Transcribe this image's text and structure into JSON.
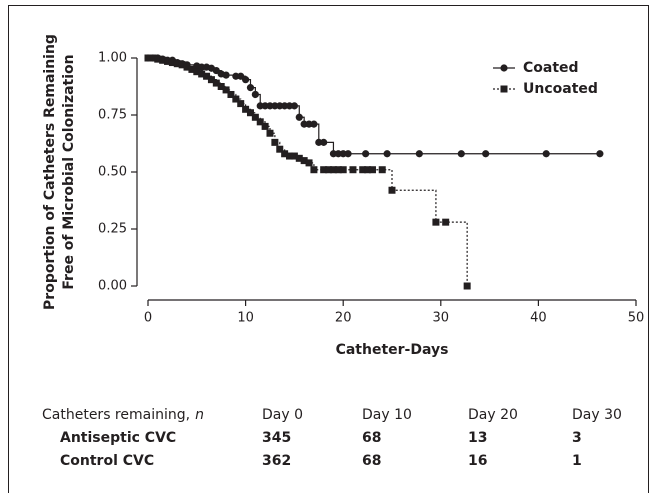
{
  "chart_data": {
    "type": "step",
    "xlabel": "Catheter-Days",
    "ylabel": [
      "Proportion of Catheters Remaining",
      "Free of Microbial Colonization"
    ],
    "xlim": [
      0,
      50
    ],
    "xticks": [
      0,
      10,
      20,
      30,
      40,
      50
    ],
    "ylim": [
      0,
      1
    ],
    "yticks": [
      {
        "value": 0,
        "label": "0.00"
      },
      {
        "value": 0.25,
        "label": "0.25"
      },
      {
        "value": 0.5,
        "label": "0.50"
      },
      {
        "value": 0.75,
        "label": "0.75"
      },
      {
        "value": 1,
        "label": "1.00"
      }
    ],
    "legend": "upper right",
    "series": [
      {
        "name": "Coated",
        "color": "#231f20",
        "marker": "circle",
        "dash": "solid",
        "x": [
          0,
          0.5,
          1,
          1.5,
          2,
          2.5,
          3,
          3.5,
          4,
          5,
          5.5,
          6,
          6.5,
          7,
          7.5,
          8,
          9,
          9.5,
          10,
          10.5,
          11,
          11.5,
          12,
          12.5,
          13,
          13.5,
          14,
          14.5,
          15,
          15.5,
          16,
          16.5,
          17,
          17.5,
          18,
          19,
          19.5,
          20,
          20.5,
          22.3,
          24.5,
          27.8,
          32.1,
          34.6,
          40.8,
          46.3
        ],
        "values": [
          1,
          1,
          1,
          0.995,
          0.99,
          0.99,
          0.98,
          0.975,
          0.97,
          0.965,
          0.96,
          0.96,
          0.955,
          0.945,
          0.93,
          0.925,
          0.92,
          0.92,
          0.905,
          0.87,
          0.84,
          0.79,
          0.79,
          0.79,
          0.79,
          0.79,
          0.79,
          0.79,
          0.79,
          0.74,
          0.71,
          0.71,
          0.71,
          0.63,
          0.63,
          0.58,
          0.58,
          0.58,
          0.58,
          0.58,
          0.58,
          0.58,
          0.58,
          0.58,
          0.58,
          0.58
        ]
      },
      {
        "name": "Uncoated",
        "color": "#231f20",
        "marker": "square",
        "dash": "dotted",
        "x": [
          0,
          0.5,
          1,
          1.5,
          2,
          2.5,
          3,
          3.5,
          4,
          4.5,
          5,
          5.5,
          6,
          6.5,
          7,
          7.5,
          8,
          8.5,
          9,
          9.5,
          10,
          10.5,
          11,
          11.5,
          12,
          12.5,
          13,
          13.5,
          14,
          14.5,
          15,
          15.5,
          16,
          16.5,
          17,
          18,
          18.5,
          19,
          19.5,
          20,
          21,
          22,
          22.5,
          23,
          24,
          25,
          29.5,
          30.5,
          32.7
        ],
        "values": [
          1,
          1,
          0.995,
          0.99,
          0.985,
          0.98,
          0.975,
          0.97,
          0.96,
          0.95,
          0.94,
          0.93,
          0.92,
          0.905,
          0.89,
          0.875,
          0.86,
          0.84,
          0.82,
          0.8,
          0.775,
          0.76,
          0.74,
          0.72,
          0.7,
          0.67,
          0.63,
          0.6,
          0.58,
          0.57,
          0.57,
          0.56,
          0.55,
          0.54,
          0.51,
          0.51,
          0.51,
          0.51,
          0.51,
          0.51,
          0.51,
          0.51,
          0.51,
          0.51,
          0.51,
          0.42,
          0.28,
          0.28,
          0
        ]
      }
    ]
  },
  "risk_table": {
    "label": "Catheters remaining,",
    "label_var": "n",
    "columns": [
      "Day 0",
      "Day 10",
      "Day 20",
      "Day 30"
    ],
    "rows": [
      {
        "name": "Antiseptic CVC",
        "values": [
          345,
          68,
          13,
          3
        ]
      },
      {
        "name": "Control CVC",
        "values": [
          362,
          68,
          16,
          1
        ]
      }
    ]
  }
}
